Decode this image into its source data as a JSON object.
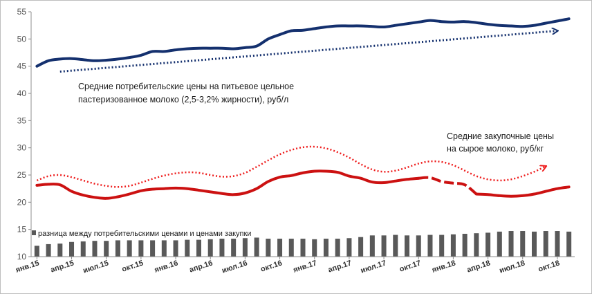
{
  "chart_data": {
    "type": "line",
    "ylim": [
      10,
      55
    ],
    "y_ticks": [
      10,
      15,
      20,
      25,
      30,
      35,
      40,
      45,
      50,
      55
    ],
    "x_tick_labels": [
      "янв.15",
      "апр.15",
      "июл.15",
      "окт.15",
      "янв.16",
      "апр.16",
      "июл.16",
      "окт.16",
      "янв.17",
      "апр.17",
      "июл.17",
      "окт.17",
      "янв.18",
      "апр.18",
      "июл.18",
      "окт.18"
    ],
    "x_tick_interval": 3,
    "grid": false,
    "colors": {
      "consumer": "#14306e",
      "purchase": "#cc1111",
      "difference": "#595959",
      "trend_consumer": "#14306e",
      "trend_purchase": "#ee1c1c"
    },
    "series": [
      {
        "key": "consumer",
        "values": [
          45.0,
          46.0,
          46.3,
          46.4,
          46.2,
          46.0,
          46.1,
          46.3,
          46.6,
          47.0,
          47.7,
          47.7,
          48.0,
          48.2,
          48.3,
          48.3,
          48.3,
          48.2,
          48.4,
          48.7,
          50.0,
          50.8,
          51.5,
          51.6,
          51.9,
          52.2,
          52.4,
          52.4,
          52.4,
          52.3,
          52.2,
          52.5,
          52.8,
          53.1,
          53.4,
          53.2,
          53.1,
          53.2,
          53.0,
          52.7,
          52.5,
          52.4,
          52.3,
          52.5,
          52.9,
          53.3,
          53.7
        ]
      },
      {
        "key": "purchase",
        "values": [
          23.1,
          23.3,
          23.2,
          22.0,
          21.3,
          20.9,
          20.7,
          21.0,
          21.5,
          22.1,
          22.4,
          22.5,
          22.6,
          22.5,
          22.2,
          21.9,
          21.6,
          21.4,
          21.7,
          22.5,
          23.8,
          24.6,
          24.9,
          25.4,
          25.7,
          25.7,
          25.5,
          24.8,
          24.4,
          23.7,
          23.6,
          23.9,
          24.2,
          24.4,
          24.5,
          23.8,
          23.5,
          23.2,
          21.5,
          21.4,
          21.2,
          21.1,
          21.2,
          21.5,
          22.0,
          22.5,
          22.8
        ],
        "dashed_from_index": 33,
        "dashed_to_index": 38
      },
      {
        "key": "difference",
        "type": "bar",
        "values": [
          12.0,
          12.3,
          12.4,
          12.7,
          12.8,
          12.9,
          12.9,
          13.0,
          13.0,
          13.0,
          13.0,
          13.0,
          13.0,
          13.1,
          13.1,
          13.2,
          13.3,
          13.3,
          13.4,
          13.5,
          13.3,
          13.3,
          13.3,
          13.3,
          13.2,
          13.3,
          13.3,
          13.4,
          13.6,
          13.9,
          13.9,
          14.0,
          13.9,
          13.9,
          14.0,
          14.0,
          14.1,
          14.2,
          14.3,
          14.4,
          14.6,
          14.7,
          14.7,
          14.6,
          14.7,
          14.7,
          14.6
        ]
      }
    ],
    "trend_lines": [
      {
        "key": "consumer",
        "style": "straight",
        "from": [
          2,
          44.0
        ],
        "to": [
          45,
          51.5
        ]
      },
      {
        "key": "purchase",
        "style": "wave",
        "values": [
          24.0,
          24.8,
          25.0,
          24.6,
          24.0,
          23.4,
          23.0,
          22.8,
          23.0,
          23.6,
          24.3,
          24.9,
          25.3,
          25.5,
          25.4,
          25.0,
          24.7,
          24.8,
          25.4,
          26.5,
          27.7,
          28.8,
          29.6,
          30.1,
          30.2,
          29.9,
          29.2,
          28.2,
          27.0,
          26.0,
          25.6,
          25.8,
          26.4,
          27.1,
          27.5,
          27.4,
          26.8,
          25.8,
          24.8,
          24.2,
          24.0,
          24.2,
          24.8,
          25.6,
          26.6
        ]
      }
    ],
    "annotations": [
      {
        "key": "consumer",
        "lines": [
          "Средние потребительские цены на питьевое цельное",
          "пастеризованное молоко (2,5-3,2% жирности), руб/л"
        ]
      },
      {
        "key": "purchase",
        "lines": [
          "Средние закупочные цены",
          "на сырое молоко, руб/кг"
        ]
      }
    ],
    "legend": {
      "label": "разница между потребительскими ценами и ценами закупки",
      "placement": "bottom-left"
    }
  }
}
